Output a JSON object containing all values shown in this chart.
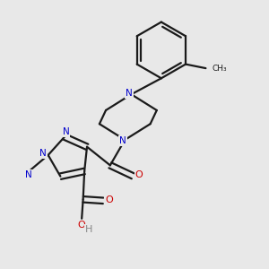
{
  "background_color": "#e8e8e8",
  "bond_color": "#1a1a1a",
  "N_color": "#0000cc",
  "O_color": "#cc0000",
  "H_color": "#888888",
  "line_width": 1.6,
  "figsize": [
    3.0,
    3.0
  ],
  "dpi": 100,
  "xlim": [
    0.0,
    1.0
  ],
  "ylim": [
    0.0,
    1.0
  ]
}
